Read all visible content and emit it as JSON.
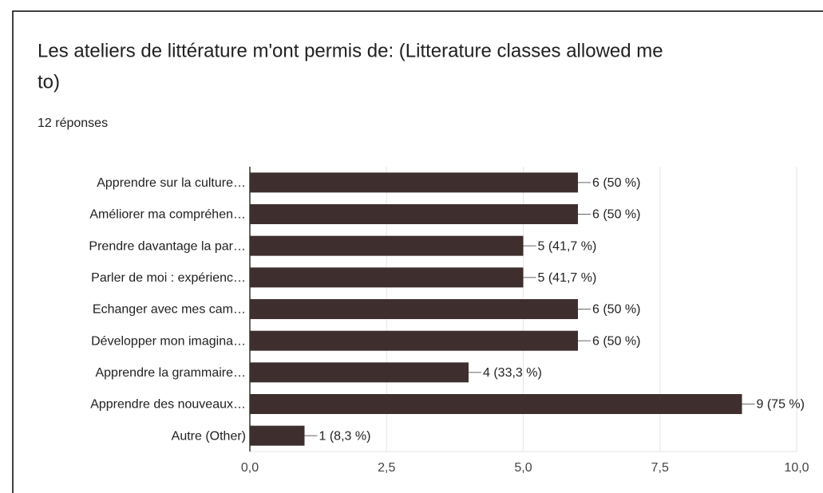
{
  "chart_data": {
    "type": "barh",
    "title": "Les ateliers de littérature m'ont permis de: (Litterature classes allowed me",
    "title_line2": "to)",
    "subtitle": "12 réponses",
    "categories": [
      "Apprendre sur la culture…",
      "Améliorer ma compréhen…",
      "Prendre davantage la par…",
      "Parler de moi : expérienc…",
      "Echanger avec mes cam…",
      "Développer mon imagina…",
      "Apprendre la grammaire…",
      "Apprendre des nouveaux…",
      "Autre (Other)"
    ],
    "values": [
      6,
      6,
      5,
      5,
      6,
      6,
      4,
      9,
      1
    ],
    "value_labels": [
      "6 (50 %)",
      "6 (50 %)",
      "5 (41,7 %)",
      "5 (41,7 %)",
      "6 (50 %)",
      "6 (50 %)",
      "4 (33,3 %)",
      "9 (75 %)",
      "1 (8,3 %)"
    ],
    "color": "#3e2e2d",
    "xlim": [
      0,
      10
    ],
    "xticks": [
      {
        "value": 0,
        "label": "0,0"
      },
      {
        "value": 2.5,
        "label": "2,5"
      },
      {
        "value": 5,
        "label": "5,0"
      },
      {
        "value": 7.5,
        "label": "7,5"
      },
      {
        "value": 10,
        "label": "10,0"
      }
    ],
    "grid": true
  }
}
